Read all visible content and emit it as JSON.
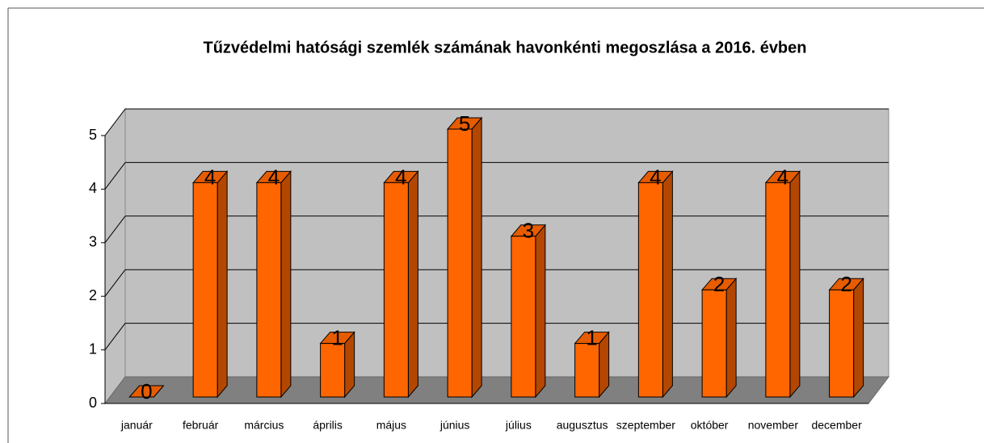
{
  "chart_data": {
    "type": "bar",
    "title": "Tűzvédelmi hatósági szemlék számának havonkénti megoszlása a 2016. évben",
    "categories": [
      "január",
      "február",
      "március",
      "április",
      "május",
      "június",
      "július",
      "augusztus",
      "szeptember",
      "október",
      "november",
      "december"
    ],
    "values": [
      0,
      4,
      4,
      1,
      4,
      5,
      3,
      1,
      4,
      2,
      4,
      2
    ],
    "color": "#ff6600",
    "ylim": [
      0,
      5
    ],
    "yticks": [
      0,
      1,
      2,
      3,
      4,
      5
    ],
    "grid": true
  }
}
